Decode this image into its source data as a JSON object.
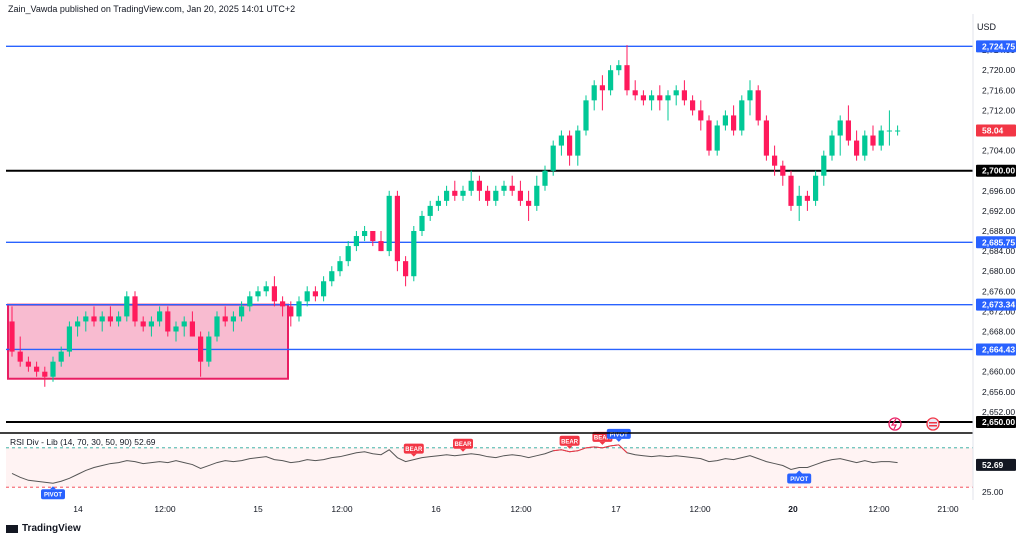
{
  "header": {
    "publisher": "Zain_Vawda published on TradingView.com, Jan 20, 2025 14:01 UTC+2",
    "currency": "USD"
  },
  "branding": {
    "logo_text": "TradingView"
  },
  "chart_data": {
    "type": "candlestick",
    "price_range": [
      2648,
      2728
    ],
    "price_ticks": [
      2652,
      2656,
      2660,
      2664,
      2668,
      2672,
      2676,
      2680,
      2684,
      2688,
      2692,
      2696,
      2700,
      2704,
      2708,
      2712,
      2716,
      2720,
      2724
    ],
    "price_tick_labels": [
      "2,652.00",
      "2,656.00",
      "2,660.00",
      "2,664.00",
      "2,668.00",
      "2,672.00",
      "2,676.00",
      "2,680.00",
      "2,684.00",
      "2,688.00",
      "2,692.00",
      "2,696.00",
      "2,700.00",
      "2,704.00",
      "2,708.00",
      "2,712.00",
      "2,716.00",
      "2,720.00",
      "2,724.00"
    ],
    "time_labels": [
      "14",
      "12:00",
      "15",
      "12:00",
      "16",
      "12:00",
      "17",
      "12:00",
      "20",
      "12:00",
      "21:00"
    ],
    "current_price_label": "58.04",
    "current_price_color": "#f23645",
    "horizontal_levels": [
      {
        "price": 2724.75,
        "label": "2,724.75",
        "color": "#2962ff"
      },
      {
        "price": 2700.0,
        "label": "2,700.00",
        "color": "#000000"
      },
      {
        "price": 2685.75,
        "label": "2,685.75",
        "color": "#2962ff"
      },
      {
        "price": 2673.34,
        "label": "2,673.34",
        "color": "#2962ff"
      },
      {
        "price": 2664.43,
        "label": "2,664.43",
        "color": "#2962ff"
      },
      {
        "price": 2650.0,
        "label": "2,650.00",
        "color": "#000000"
      }
    ],
    "zone": {
      "price_top": 2673.34,
      "price_bottom": 2658.6,
      "fill": "#f8bbd0",
      "border": "#e91e63"
    },
    "colors": {
      "up": "#26a69a",
      "up_fill": "#089981",
      "down": "#f23645",
      "up_candle": "#00c896",
      "down_candle": "#ff1a5c"
    },
    "candles": [
      [
        2670,
        2673,
        2663,
        2664
      ],
      [
        2664,
        2667,
        2661,
        2662
      ],
      [
        2662,
        2663,
        2660,
        2661
      ],
      [
        2661,
        2662,
        2659,
        2660
      ],
      [
        2660,
        2661,
        2657,
        2659
      ],
      [
        2659,
        2663,
        2658,
        2662
      ],
      [
        2662,
        2665,
        2661,
        2664
      ],
      [
        2664,
        2670,
        2663,
        2669
      ],
      [
        2669,
        2671,
        2667,
        2670
      ],
      [
        2670,
        2672,
        2668,
        2671
      ],
      [
        2671,
        2673,
        2669,
        2670
      ],
      [
        2670,
        2672,
        2668,
        2671
      ],
      [
        2671,
        2673,
        2669,
        2670
      ],
      [
        2670,
        2672,
        2669,
        2671
      ],
      [
        2671,
        2676,
        2670,
        2675
      ],
      [
        2675,
        2676,
        2669,
        2670
      ],
      [
        2670,
        2671,
        2668,
        2669
      ],
      [
        2669,
        2671,
        2667,
        2670
      ],
      [
        2670,
        2673,
        2669,
        2672
      ],
      [
        2672,
        2673,
        2667,
        2668
      ],
      [
        2668,
        2670,
        2666,
        2669
      ],
      [
        2669,
        2671,
        2667,
        2670
      ],
      [
        2670,
        2672,
        2667,
        2667
      ],
      [
        2667,
        2668,
        2659,
        2662
      ],
      [
        2662,
        2668,
        2661,
        2667
      ],
      [
        2667,
        2672,
        2666,
        2671
      ],
      [
        2671,
        2673,
        2669,
        2670
      ],
      [
        2670,
        2672,
        2668,
        2671
      ],
      [
        2671,
        2674,
        2670,
        2673
      ],
      [
        2673,
        2676,
        2672,
        2675
      ],
      [
        2675,
        2677,
        2674,
        2676
      ],
      [
        2676,
        2678,
        2675,
        2677
      ],
      [
        2677,
        2679,
        2673,
        2674
      ],
      [
        2674,
        2675,
        2671,
        2673
      ],
      [
        2673,
        2674,
        2669,
        2671
      ],
      [
        2671,
        2675,
        2670,
        2674
      ],
      [
        2674,
        2677,
        2673,
        2676
      ],
      [
        2676,
        2677,
        2674,
        2675
      ],
      [
        2675,
        2679,
        2674,
        2678
      ],
      [
        2678,
        2681,
        2677,
        2680
      ],
      [
        2680,
        2683,
        2679,
        2682
      ],
      [
        2682,
        2686,
        2681,
        2685
      ],
      [
        2685,
        2688,
        2684,
        2687
      ],
      [
        2687,
        2689,
        2686,
        2688
      ],
      [
        2688,
        2688,
        2685,
        2686
      ],
      [
        2686,
        2688,
        2684,
        2684
      ],
      [
        2684,
        2696,
        2683,
        2695
      ],
      [
        2695,
        2696,
        2680,
        2682
      ],
      [
        2682,
        2683,
        2677,
        2679
      ],
      [
        2679,
        2689,
        2678,
        2688
      ],
      [
        2688,
        2692,
        2687,
        2691
      ],
      [
        2691,
        2694,
        2690,
        2693
      ],
      [
        2693,
        2695,
        2692,
        2694
      ],
      [
        2694,
        2697,
        2693,
        2696
      ],
      [
        2696,
        2698,
        2694,
        2695
      ],
      [
        2695,
        2697,
        2694,
        2696
      ],
      [
        2696,
        2700,
        2695,
        2698
      ],
      [
        2698,
        2699,
        2694,
        2696
      ],
      [
        2696,
        2697,
        2693,
        2694
      ],
      [
        2694,
        2697,
        2693,
        2696
      ],
      [
        2696,
        2698,
        2695,
        2697
      ],
      [
        2697,
        2699,
        2695,
        2696
      ],
      [
        2696,
        2698,
        2693,
        2694
      ],
      [
        2694,
        2696,
        2690,
        2693
      ],
      [
        2693,
        2699,
        2692,
        2697
      ],
      [
        2697,
        2701,
        2696,
        2700
      ],
      [
        2700,
        2706,
        2699,
        2705
      ],
      [
        2705,
        2708,
        2703,
        2707
      ],
      [
        2707,
        2708,
        2701,
        2703
      ],
      [
        2703,
        2709,
        2701,
        2708
      ],
      [
        2708,
        2715,
        2707,
        2714
      ],
      [
        2714,
        2718,
        2712,
        2717
      ],
      [
        2717,
        2719,
        2712,
        2716
      ],
      [
        2716,
        2721,
        2715,
        2720
      ],
      [
        2720,
        2722,
        2719,
        2721
      ],
      [
        2721,
        2725,
        2715,
        2716
      ],
      [
        2716,
        2718,
        2714,
        2715
      ],
      [
        2715,
        2716,
        2713,
        2714
      ],
      [
        2714,
        2716,
        2712,
        2715
      ],
      [
        2715,
        2717,
        2712,
        2714
      ],
      [
        2714,
        2716,
        2710,
        2715
      ],
      [
        2715,
        2717,
        2713,
        2716
      ],
      [
        2716,
        2718,
        2713,
        2714
      ],
      [
        2714,
        2715,
        2711,
        2712
      ],
      [
        2712,
        2714,
        2708,
        2710
      ],
      [
        2710,
        2711,
        2703,
        2704
      ],
      [
        2704,
        2710,
        2703,
        2709
      ],
      [
        2709,
        2712,
        2708,
        2711
      ],
      [
        2711,
        2713,
        2707,
        2708
      ],
      [
        2708,
        2715,
        2707,
        2714
      ],
      [
        2714,
        2718,
        2711,
        2716
      ],
      [
        2716,
        2717,
        2709,
        2710
      ],
      [
        2710,
        2711,
        2702,
        2703
      ],
      [
        2703,
        2705,
        2699,
        2701
      ],
      [
        2701,
        2702,
        2697,
        2699
      ],
      [
        2699,
        2700,
        2692,
        2693
      ],
      [
        2693,
        2697,
        2690,
        2695
      ],
      [
        2695,
        2696,
        2692,
        2694
      ],
      [
        2694,
        2700,
        2693,
        2699
      ],
      [
        2699,
        2704,
        2697,
        2703
      ],
      [
        2703,
        2708,
        2702,
        2707
      ],
      [
        2707,
        2711,
        2703,
        2710
      ],
      [
        2710,
        2713,
        2705,
        2706
      ],
      [
        2706,
        2708,
        2702,
        2703
      ],
      [
        2703,
        2708,
        2702,
        2707
      ],
      [
        2707,
        2709,
        2704,
        2705
      ],
      [
        2705,
        2709,
        2704,
        2708
      ],
      [
        2708,
        2712,
        2705,
        2708
      ],
      [
        2708,
        2709,
        2707,
        2708
      ]
    ],
    "indicator": {
      "name": "RSI Div - Lib (14, 70, 30, 50, 90)",
      "value": "52.69",
      "upper": 70,
      "lower": 30,
      "axis_label": "25.00",
      "value_badge": "52.69",
      "line_color": "#555555",
      "band_fill": "#fff3f3",
      "values": [
        44,
        40,
        37,
        36,
        35,
        34,
        36,
        39,
        43,
        47,
        50,
        52,
        54,
        55,
        57,
        56,
        54,
        55,
        56,
        55,
        57,
        55,
        53,
        49,
        52,
        55,
        57,
        56,
        57,
        59,
        60,
        61,
        58,
        57,
        55,
        56,
        58,
        57,
        58,
        60,
        61,
        63,
        65,
        66,
        64,
        63,
        68,
        60,
        56,
        58,
        60,
        61,
        62,
        63,
        62,
        63,
        64,
        63,
        61,
        60,
        62,
        63,
        62,
        60,
        62,
        64,
        67,
        68,
        66,
        67,
        70,
        71,
        70,
        72,
        73,
        65,
        63,
        62,
        61,
        62,
        61,
        62,
        61,
        60,
        59,
        56,
        57,
        59,
        58,
        60,
        62,
        59,
        56,
        54,
        52,
        48,
        50,
        50,
        53,
        56,
        58,
        59,
        57,
        55,
        57,
        55,
        56,
        56,
        55
      ],
      "signals": [
        {
          "label": "PIVOT",
          "index": 5,
          "color": "#2962ff",
          "position": "below"
        },
        {
          "label": "BEAR",
          "index": 49,
          "color": "#f23645",
          "position": "above"
        },
        {
          "label": "BEAR",
          "index": 55,
          "color": "#f23645",
          "position": "above"
        },
        {
          "label": "BEAR",
          "index": 68,
          "color": "#f23645",
          "position": "above"
        },
        {
          "label": "BEAR",
          "index": 72,
          "color": "#f23645",
          "position": "above"
        },
        {
          "label": "PIVOT",
          "index": 74,
          "color": "#2962ff",
          "position": "above"
        },
        {
          "label": "PIVOT",
          "index": 96,
          "color": "#2962ff",
          "position": "below"
        }
      ]
    }
  }
}
